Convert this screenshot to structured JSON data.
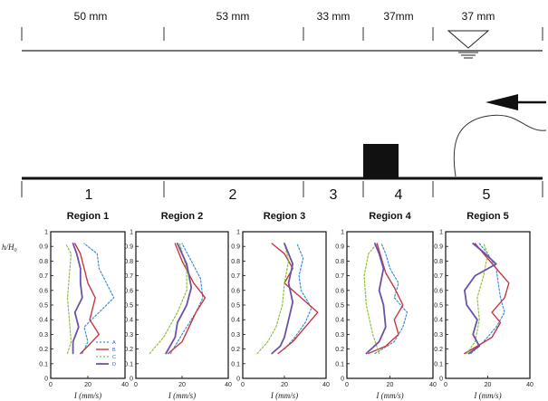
{
  "dimensions": [
    "50 mm",
    "53 mm",
    "33 mm",
    "37mm",
    "37 mm"
  ],
  "region_numbers": [
    "1",
    "2",
    "3",
    "4",
    "5"
  ],
  "y_axis_label": "h/H",
  "y_axis_subscript": "0",
  "x_axis_label": "I (mm/s)",
  "colors": {
    "A": "#3f8fd6",
    "B": "#c8383e",
    "C": "#8fc13c",
    "D": "#6a52a8"
  },
  "chart_data": [
    {
      "type": "line",
      "title": "Region 1",
      "xlim": [
        0,
        40
      ],
      "ylim": [
        0,
        1
      ],
      "xticks": [
        0,
        20,
        40
      ],
      "yticks": [
        0,
        0.1,
        0.2,
        0.3,
        0.4,
        0.5,
        0.6,
        0.7,
        0.8,
        0.9,
        1
      ],
      "legend": [
        "A",
        "B",
        "C",
        "D"
      ],
      "series": [
        {
          "name": "A",
          "points": [
            [
              17,
              0.17
            ],
            [
              20,
              0.25
            ],
            [
              18,
              0.35
            ],
            [
              26,
              0.45
            ],
            [
              34,
              0.55
            ],
            [
              30,
              0.65
            ],
            [
              26,
              0.75
            ],
            [
              25,
              0.85
            ],
            [
              18,
              0.92
            ]
          ]
        },
        {
          "name": "B",
          "points": [
            [
              16,
              0.17
            ],
            [
              20,
              0.22
            ],
            [
              26,
              0.3
            ],
            [
              21,
              0.4
            ],
            [
              24,
              0.55
            ],
            [
              20,
              0.65
            ],
            [
              18,
              0.75
            ],
            [
              16,
              0.85
            ],
            [
              13,
              0.92
            ]
          ]
        },
        {
          "name": "C",
          "points": [
            [
              9,
              0.17
            ],
            [
              11,
              0.25
            ],
            [
              10,
              0.4
            ],
            [
              9,
              0.55
            ],
            [
              10,
              0.7
            ],
            [
              11,
              0.85
            ],
            [
              8,
              0.92
            ]
          ]
        },
        {
          "name": "D",
          "points": [
            [
              12,
              0.17
            ],
            [
              12,
              0.25
            ],
            [
              15,
              0.35
            ],
            [
              13,
              0.45
            ],
            [
              17,
              0.55
            ],
            [
              16,
              0.65
            ],
            [
              16,
              0.75
            ],
            [
              14,
              0.85
            ],
            [
              12,
              0.92
            ]
          ]
        }
      ]
    },
    {
      "type": "line",
      "title": "Region 2",
      "xlim": [
        0,
        40
      ],
      "ylim": [
        0,
        1
      ],
      "xticks": [
        0,
        20,
        40
      ],
      "yticks": [
        0,
        0.1,
        0.2,
        0.3,
        0.4,
        0.5,
        0.6,
        0.7,
        0.8,
        0.9,
        1
      ],
      "series": [
        {
          "name": "A",
          "points": [
            [
              15,
              0.17
            ],
            [
              20,
              0.3
            ],
            [
              26,
              0.45
            ],
            [
              29,
              0.55
            ],
            [
              28,
              0.68
            ],
            [
              24,
              0.8
            ],
            [
              20,
              0.92
            ]
          ]
        },
        {
          "name": "B",
          "points": [
            [
              14,
              0.17
            ],
            [
              20,
              0.25
            ],
            [
              23,
              0.35
            ],
            [
              26,
              0.45
            ],
            [
              30,
              0.55
            ],
            [
              25,
              0.65
            ],
            [
              20,
              0.8
            ],
            [
              17,
              0.92
            ]
          ]
        },
        {
          "name": "C",
          "points": [
            [
              6,
              0.17
            ],
            [
              12,
              0.28
            ],
            [
              18,
              0.45
            ],
            [
              22,
              0.6
            ],
            [
              22,
              0.75
            ],
            [
              19,
              0.92
            ]
          ]
        },
        {
          "name": "D",
          "points": [
            [
              13,
              0.17
            ],
            [
              17,
              0.28
            ],
            [
              18,
              0.38
            ],
            [
              22,
              0.5
            ],
            [
              24,
              0.62
            ],
            [
              22,
              0.78
            ],
            [
              18,
              0.92
            ]
          ]
        }
      ]
    },
    {
      "type": "line",
      "title": "Region 3",
      "xlim": [
        0,
        40
      ],
      "ylim": [
        0,
        1
      ],
      "xticks": [
        0,
        20,
        40
      ],
      "yticks": [
        0,
        0.1,
        0.2,
        0.3,
        0.4,
        0.5,
        0.6,
        0.7,
        0.8,
        0.9,
        1
      ],
      "series": [
        {
          "name": "A",
          "points": [
            [
              20,
              0.2
            ],
            [
              25,
              0.28
            ],
            [
              30,
              0.38
            ],
            [
              33,
              0.48
            ],
            [
              28,
              0.6
            ],
            [
              27,
              0.7
            ],
            [
              29,
              0.82
            ],
            [
              26,
              0.92
            ]
          ]
        },
        {
          "name": "B",
          "points": [
            [
              17,
              0.17
            ],
            [
              24,
              0.25
            ],
            [
              30,
              0.35
            ],
            [
              36,
              0.45
            ],
            [
              28,
              0.55
            ],
            [
              20,
              0.65
            ],
            [
              24,
              0.75
            ],
            [
              20,
              0.85
            ],
            [
              14,
              0.92
            ]
          ]
        },
        {
          "name": "C",
          "points": [
            [
              7,
              0.17
            ],
            [
              12,
              0.25
            ],
            [
              16,
              0.35
            ],
            [
              19,
              0.5
            ],
            [
              20,
              0.65
            ],
            [
              22,
              0.8
            ],
            [
              20,
              0.92
            ]
          ]
        },
        {
          "name": "D",
          "points": [
            [
              14,
              0.17
            ],
            [
              18,
              0.22
            ],
            [
              20,
              0.28
            ],
            [
              22,
              0.4
            ],
            [
              24,
              0.52
            ],
            [
              22,
              0.65
            ],
            [
              24,
              0.78
            ],
            [
              20,
              0.92
            ]
          ]
        }
      ]
    },
    {
      "type": "line",
      "title": "Region 4",
      "xlim": [
        0,
        40
      ],
      "ylim": [
        0,
        1
      ],
      "xticks": [
        0,
        20,
        40
      ],
      "yticks": [
        0,
        0.1,
        0.2,
        0.3,
        0.4,
        0.5,
        0.6,
        0.7,
        0.8,
        0.9,
        1
      ],
      "series": [
        {
          "name": "A",
          "points": [
            [
              13,
              0.17
            ],
            [
              22,
              0.25
            ],
            [
              26,
              0.35
            ],
            [
              28,
              0.45
            ],
            [
              22,
              0.55
            ],
            [
              24,
              0.65
            ],
            [
              20,
              0.75
            ],
            [
              18,
              0.85
            ],
            [
              16,
              0.92
            ]
          ]
        },
        {
          "name": "B",
          "points": [
            [
              10,
              0.17
            ],
            [
              18,
              0.22
            ],
            [
              24,
              0.3
            ],
            [
              22,
              0.4
            ],
            [
              26,
              0.5
            ],
            [
              22,
              0.62
            ],
            [
              18,
              0.72
            ],
            [
              16,
              0.82
            ],
            [
              14,
              0.92
            ]
          ]
        },
        {
          "name": "C",
          "points": [
            [
              15,
              0.17
            ],
            [
              12,
              0.3
            ],
            [
              9,
              0.5
            ],
            [
              8,
              0.7
            ],
            [
              10,
              0.85
            ],
            [
              14,
              0.92
            ]
          ]
        },
        {
          "name": "D",
          "points": [
            [
              9,
              0.17
            ],
            [
              15,
              0.25
            ],
            [
              18,
              0.35
            ],
            [
              17,
              0.5
            ],
            [
              15,
              0.6
            ],
            [
              17,
              0.75
            ],
            [
              15,
              0.85
            ],
            [
              13,
              0.92
            ]
          ]
        }
      ]
    },
    {
      "type": "line",
      "title": "Region 5",
      "xlim": [
        0,
        40
      ],
      "ylim": [
        0,
        1
      ],
      "xticks": [
        0,
        20,
        40
      ],
      "yticks": [
        0,
        0.1,
        0.2,
        0.3,
        0.4,
        0.5,
        0.6,
        0.7,
        0.8,
        0.9,
        1
      ],
      "series": [
        {
          "name": "A",
          "points": [
            [
              12,
              0.17
            ],
            [
              18,
              0.25
            ],
            [
              24,
              0.35
            ],
            [
              28,
              0.45
            ],
            [
              26,
              0.55
            ],
            [
              25,
              0.65
            ],
            [
              24,
              0.75
            ],
            [
              20,
              0.85
            ],
            [
              16,
              0.92
            ]
          ]
        },
        {
          "name": "B",
          "points": [
            [
              9,
              0.17
            ],
            [
              15,
              0.22
            ],
            [
              22,
              0.28
            ],
            [
              26,
              0.38
            ],
            [
              22,
              0.45
            ],
            [
              28,
              0.55
            ],
            [
              30,
              0.65
            ],
            [
              24,
              0.75
            ],
            [
              18,
              0.85
            ],
            [
              14,
              0.92
            ]
          ]
        },
        {
          "name": "C",
          "points": [
            [
              10,
              0.17
            ],
            [
              14,
              0.25
            ],
            [
              16,
              0.4
            ],
            [
              15,
              0.55
            ],
            [
              18,
              0.7
            ],
            [
              20,
              0.85
            ],
            [
              18,
              0.92
            ]
          ]
        },
        {
          "name": "D",
          "points": [
            [
              11,
              0.17
            ],
            [
              16,
              0.22
            ],
            [
              13,
              0.3
            ],
            [
              15,
              0.4
            ],
            [
              10,
              0.5
            ],
            [
              9,
              0.6
            ],
            [
              14,
              0.7
            ],
            [
              24,
              0.78
            ],
            [
              18,
              0.86
            ],
            [
              13,
              0.92
            ]
          ]
        }
      ]
    }
  ]
}
